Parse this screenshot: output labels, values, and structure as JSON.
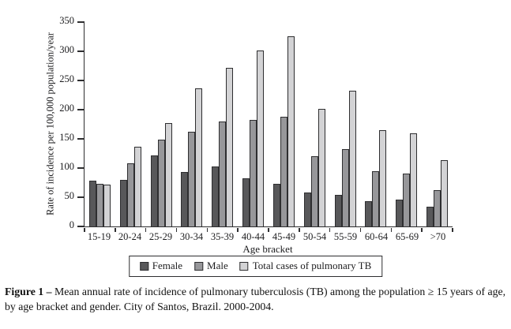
{
  "chart_data": {
    "type": "bar",
    "categories": [
      "15-19",
      "20-24",
      "25-29",
      "30-34",
      "35-39",
      "40-44",
      "45-49",
      "50-54",
      "55-59",
      "60-64",
      "65-69",
      ">70"
    ],
    "series": [
      {
        "name": "Female",
        "color": "#58585a",
        "values": [
          78,
          80,
          121,
          93,
          103,
          83,
          73,
          58,
          54,
          43,
          46,
          34
        ]
      },
      {
        "name": "Male",
        "color": "#97979a",
        "values": [
          73,
          108,
          149,
          162,
          180,
          183,
          188,
          120,
          132,
          95,
          91,
          62
        ]
      },
      {
        "name": "Total cases of pulmonary TB",
        "color": "#d3d3d5",
        "values": [
          71,
          137,
          177,
          237,
          271,
          302,
          325,
          202,
          232,
          165,
          159,
          114
        ]
      }
    ],
    "xlabel": "Age bracket",
    "ylabel": "Rate of incidence per 100,000 population/year",
    "ylim": [
      0,
      350
    ],
    "y_ticks": [
      0,
      50,
      100,
      150,
      200,
      250,
      300,
      350
    ],
    "grid": false,
    "legend_position": "bottom",
    "bar_outline_color": "#2e2e30"
  },
  "caption": {
    "label": "Figure 1 –",
    "text": " Mean annual rate of incidence of pulmonary tuberculosis (TB) among the population ≥ 15 years of age, by age bracket and gender. City of Santos, Brazil. 2000-2004."
  }
}
